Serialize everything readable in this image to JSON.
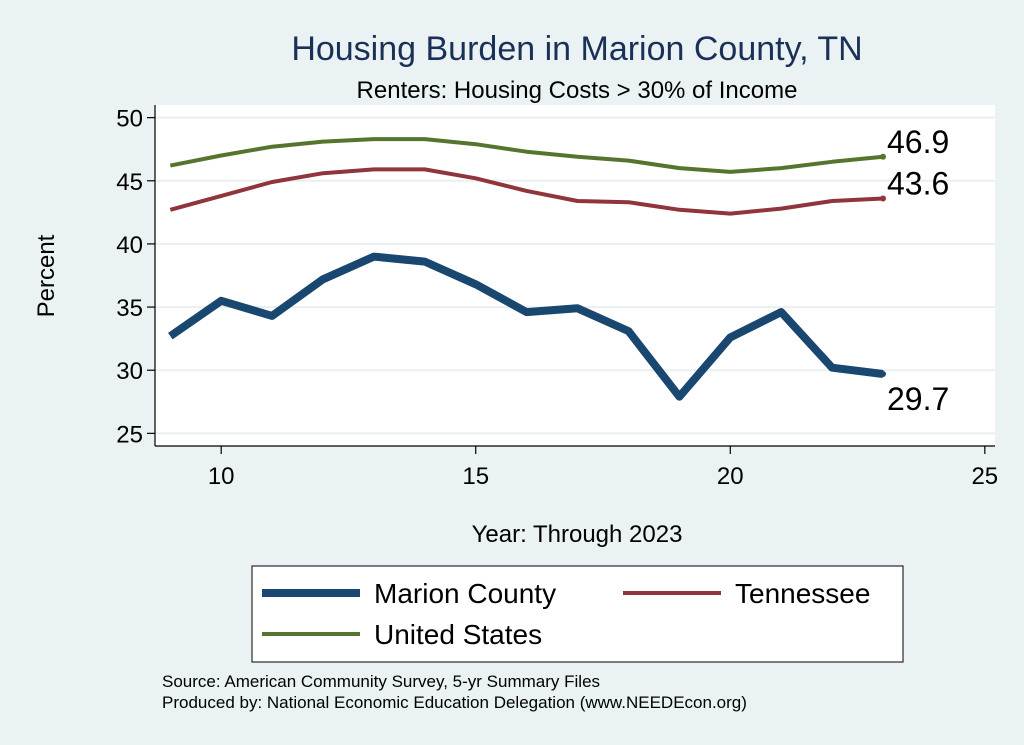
{
  "chart_data": {
    "type": "line",
    "title": "Housing Burden in Marion County, TN",
    "subtitle": "Renters: Housing Costs > 30% of Income",
    "xlabel": "Year: Through 2023",
    "ylabel": "Percent",
    "xlim": [
      8.7,
      25.2
    ],
    "ylim": [
      24,
      51
    ],
    "xticks": [
      10,
      15,
      20,
      25
    ],
    "yticks": [
      25,
      30,
      35,
      40,
      45,
      50
    ],
    "grid": true,
    "legend_position": "bottom",
    "x": [
      9,
      10,
      11,
      12,
      13,
      14,
      15,
      16,
      17,
      18,
      19,
      20,
      21,
      22,
      23
    ],
    "series": [
      {
        "name": "Marion County",
        "color": "#1a476f",
        "values": [
          32.7,
          35.5,
          34.3,
          37.2,
          39.0,
          38.6,
          36.8,
          34.6,
          34.9,
          33.1,
          27.9,
          32.6,
          34.6,
          30.2,
          29.7
        ],
        "end_label": "29.7"
      },
      {
        "name": "Tennessee",
        "color": "#90353b",
        "values": [
          42.7,
          43.8,
          44.9,
          45.6,
          45.9,
          45.9,
          45.2,
          44.2,
          43.4,
          43.3,
          42.7,
          42.4,
          42.8,
          43.4,
          43.6
        ],
        "end_label": "43.6"
      },
      {
        "name": "United States",
        "color": "#55752f",
        "values": [
          46.2,
          47.0,
          47.7,
          48.1,
          48.3,
          48.3,
          47.9,
          47.3,
          46.9,
          46.6,
          46.0,
          45.7,
          46.0,
          46.5,
          46.9
        ],
        "end_label": "46.9"
      }
    ]
  },
  "source_line_1": "Source: American Community Survey, 5-yr Summary Files",
  "source_line_2": "Produced by: National Economic Education Delegation (www.NEEDEcon.org)"
}
